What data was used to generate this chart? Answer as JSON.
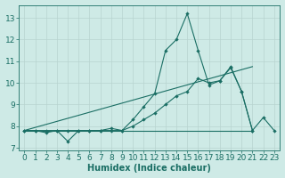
{
  "bg_color": "#ceeae6",
  "grid_color": "#b8d4d0",
  "line_color": "#1a6e64",
  "xlabel": "Humidex (Indice chaleur)",
  "x_values": [
    0,
    1,
    2,
    3,
    4,
    5,
    6,
    7,
    8,
    9,
    10,
    11,
    12,
    13,
    14,
    15,
    16,
    17,
    18,
    19,
    20,
    21,
    22,
    23
  ],
  "series1": [
    7.8,
    7.8,
    7.7,
    7.8,
    7.3,
    7.8,
    7.8,
    7.8,
    7.9,
    7.8,
    8.3,
    8.9,
    9.5,
    11.5,
    12.0,
    13.2,
    11.5,
    9.9,
    10.1,
    10.7,
    9.6,
    7.8,
    8.4,
    7.8
  ],
  "series2": [
    7.8,
    7.8,
    7.8,
    7.8,
    7.8,
    7.8,
    7.8,
    7.8,
    7.8,
    7.8,
    8.0,
    8.3,
    8.6,
    9.0,
    9.4,
    9.6,
    10.2,
    10.0,
    10.1,
    10.75,
    9.6,
    7.8,
    null,
    null
  ],
  "line1_x": [
    0,
    21
  ],
  "line1_y": [
    7.8,
    7.8
  ],
  "line2_x": [
    0,
    21
  ],
  "line2_y": [
    7.8,
    10.75
  ],
  "ylim": [
    6.9,
    13.6
  ],
  "xlim": [
    -0.5,
    23.5
  ],
  "yticks": [
    7,
    8,
    9,
    10,
    11,
    12,
    13
  ],
  "xticks": [
    0,
    1,
    2,
    3,
    4,
    5,
    6,
    7,
    8,
    9,
    10,
    11,
    12,
    13,
    14,
    15,
    16,
    17,
    18,
    19,
    20,
    21,
    22,
    23
  ],
  "fontsize_label": 7,
  "fontsize_tick": 6.5
}
